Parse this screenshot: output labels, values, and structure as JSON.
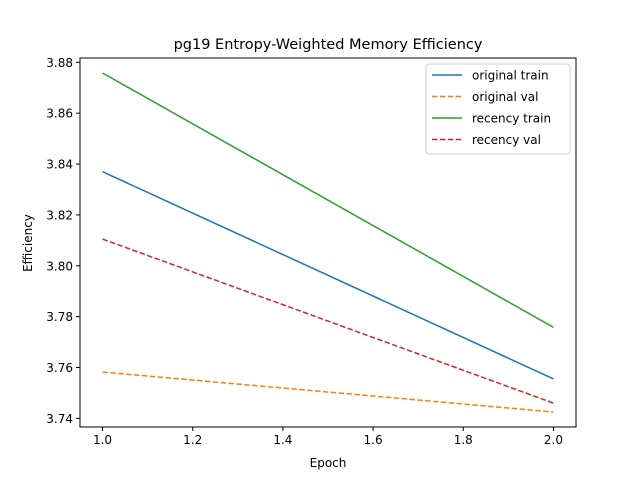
{
  "chart_data": {
    "type": "line",
    "title": "pg19 Entropy-Weighted Memory Efficiency",
    "xlabel": "Epoch",
    "ylabel": "Efficiency",
    "xlim": [
      0.95,
      2.05
    ],
    "ylim": [
      3.7366,
      3.8817
    ],
    "xticks": [
      1.0,
      1.2,
      1.4,
      1.6,
      1.8,
      2.0
    ],
    "xtick_labels": [
      "1.0",
      "1.2",
      "1.4",
      "1.6",
      "1.8",
      "2.0"
    ],
    "yticks": [
      3.74,
      3.76,
      3.78,
      3.8,
      3.82,
      3.84,
      3.86,
      3.88
    ],
    "ytick_labels": [
      "3.74",
      "3.76",
      "3.78",
      "3.80",
      "3.82",
      "3.84",
      "3.86",
      "3.88"
    ],
    "grid": false,
    "legend_position": "top-right",
    "series": [
      {
        "name": "original train",
        "x": [
          1,
          2
        ],
        "values": [
          3.837,
          3.7555
        ],
        "color": "#1f77b4",
        "style": "solid"
      },
      {
        "name": "original val",
        "x": [
          1,
          2
        ],
        "values": [
          3.7582,
          3.7425
        ],
        "color": "#ff7f0e",
        "style": "dashed"
      },
      {
        "name": "recency train",
        "x": [
          1,
          2
        ],
        "values": [
          3.8758,
          3.7758
        ],
        "color": "#2ca02c",
        "style": "solid"
      },
      {
        "name": "recency val",
        "x": [
          1,
          2
        ],
        "values": [
          3.8105,
          3.746
        ],
        "color": "#d62728",
        "style": "dashed"
      }
    ]
  }
}
